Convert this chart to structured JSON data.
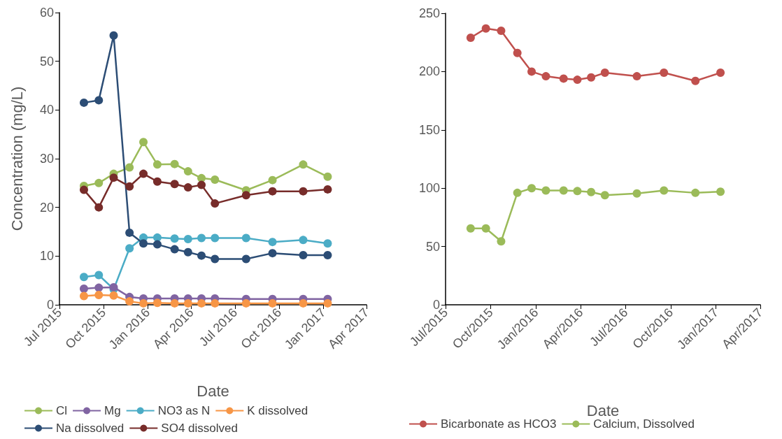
{
  "chart_data": [
    {
      "type": "line",
      "xlabel": "Date",
      "ylabel": "Concentration (mg/L)",
      "xlim": [
        "2015-07-01",
        "2017-04-01"
      ],
      "ylim": [
        0,
        60
      ],
      "yticks": [
        0,
        10,
        20,
        30,
        40,
        50,
        60
      ],
      "xticks": [
        {
          "value": "2015-07-01",
          "label": "Jul 2015"
        },
        {
          "value": "2015-10-01",
          "label": "Oct 2015"
        },
        {
          "value": "2016-01-01",
          "label": "Jan 2016"
        },
        {
          "value": "2016-04-01",
          "label": "Apr 2016"
        },
        {
          "value": "2016-07-01",
          "label": "Jul 2016"
        },
        {
          "value": "2016-10-01",
          "label": "Oct 2016"
        },
        {
          "value": "2017-01-01",
          "label": "Jan 2017"
        },
        {
          "value": "2017-04-01",
          "label": "Apr 2017"
        }
      ],
      "x": [
        "2015-08-21",
        "2015-09-21",
        "2015-10-22",
        "2015-11-24",
        "2015-12-23",
        "2016-01-21",
        "2016-02-26",
        "2016-03-25",
        "2016-04-22",
        "2016-05-20",
        "2016-07-24",
        "2016-09-17",
        "2016-11-20",
        "2017-01-10"
      ],
      "grid": false,
      "legend": "bottom",
      "marker": "circle",
      "line_style": "solid",
      "series": [
        {
          "name": "Cl",
          "color": "#9bbb59",
          "values": [
            24.4,
            25.0,
            26.9,
            28.2,
            33.4,
            28.8,
            28.9,
            27.4,
            26.0,
            25.7,
            23.5,
            25.6,
            28.8,
            26.3
          ]
        },
        {
          "name": "Mg",
          "color": "#8064a2",
          "values": [
            3.3,
            3.5,
            3.6,
            1.6,
            1.3,
            1.3,
            1.3,
            1.3,
            1.3,
            1.3,
            1.2,
            1.2,
            1.2,
            1.2
          ]
        },
        {
          "name": "NO3 as N",
          "color": "#4bacc6",
          "values": [
            5.7,
            6.1,
            3.2,
            11.6,
            13.8,
            13.8,
            13.6,
            13.5,
            13.7,
            13.7,
            13.7,
            12.9,
            13.3,
            12.6
          ]
        },
        {
          "name": "K dissolved",
          "color": "#f79646",
          "values": [
            1.8,
            2.0,
            1.9,
            0.7,
            0.3,
            0.4,
            0.3,
            0.3,
            0.3,
            0.3,
            0.3,
            0.3,
            0.3,
            0.3
          ]
        },
        {
          "name": "Na dissolved",
          "color": "#2c4d75",
          "values": [
            41.5,
            42.0,
            55.3,
            14.8,
            12.6,
            12.4,
            11.4,
            10.8,
            10.1,
            9.4,
            9.4,
            10.6,
            10.2,
            10.2
          ]
        },
        {
          "name": "SO4 dissolved",
          "color": "#772c2a",
          "values": [
            23.6,
            20.0,
            26.1,
            24.3,
            26.9,
            25.3,
            24.8,
            24.1,
            24.6,
            20.8,
            22.5,
            23.3,
            23.3,
            23.7
          ]
        }
      ]
    },
    {
      "type": "line",
      "xlabel": "Date",
      "xlim": [
        "2015-07-01",
        "2017-04-01"
      ],
      "ylim": [
        0,
        250
      ],
      "yticks": [
        0,
        50,
        100,
        150,
        200,
        250
      ],
      "xticks": [
        {
          "value": "2015-07-01",
          "label": "Jul/2015"
        },
        {
          "value": "2015-10-01",
          "label": "Oct/2015"
        },
        {
          "value": "2016-01-01",
          "label": "Jan/2016"
        },
        {
          "value": "2016-04-01",
          "label": "Apr/2016"
        },
        {
          "value": "2016-07-01",
          "label": "Jul/2016"
        },
        {
          "value": "2016-10-01",
          "label": "Oct/2016"
        },
        {
          "value": "2017-01-01",
          "label": "Jan/2017"
        },
        {
          "value": "2017-04-01",
          "label": "Apr/2017"
        }
      ],
      "x": [
        "2015-08-21",
        "2015-09-21",
        "2015-10-22",
        "2015-11-24",
        "2015-12-23",
        "2016-01-21",
        "2016-02-26",
        "2016-03-25",
        "2016-04-22",
        "2016-05-20",
        "2016-07-24",
        "2016-09-17",
        "2016-11-20",
        "2017-01-10"
      ],
      "grid": false,
      "legend": "bottom",
      "marker": "circle",
      "line_style": "solid",
      "series": [
        {
          "name": "Bicarbonate as HCO3",
          "color": "#c0504d",
          "values": [
            229,
            237,
            235,
            216,
            200,
            196,
            194,
            193,
            195,
            199,
            196,
            199,
            192,
            199
          ]
        },
        {
          "name": "Calcium, Dissolved",
          "color": "#9bbb59",
          "values": [
            65.5,
            65.5,
            54.4,
            96,
            100,
            98,
            98,
            97.5,
            96.7,
            94,
            95.5,
            98,
            96,
            97
          ]
        }
      ]
    }
  ]
}
